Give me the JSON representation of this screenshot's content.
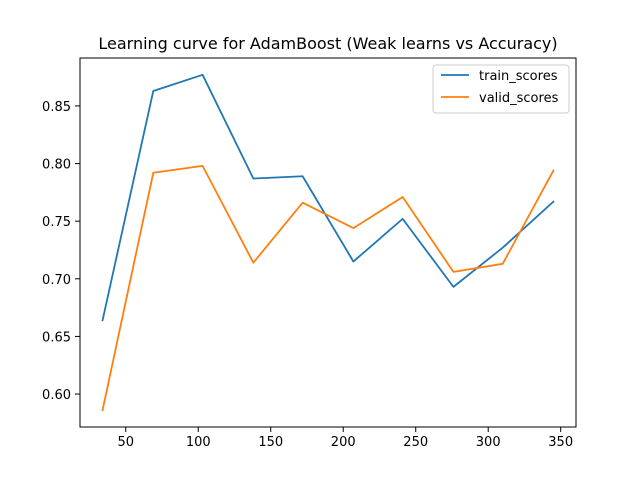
{
  "chart_data": {
    "type": "line",
    "title": "Learning curve for AdamBoost (Weak learns vs Accuracy)",
    "xlabel": "",
    "ylabel": "",
    "x": [
      34,
      69,
      103,
      138,
      172,
      207,
      241,
      276,
      310,
      345
    ],
    "series": [
      {
        "name": "train_scores",
        "color": "#1f77b4",
        "values": [
          0.664,
          0.863,
          0.877,
          0.787,
          0.789,
          0.715,
          0.752,
          0.693,
          0.727,
          0.767
        ]
      },
      {
        "name": "valid_scores",
        "color": "#ff7f0e",
        "values": [
          0.586,
          0.792,
          0.798,
          0.714,
          0.766,
          0.744,
          0.771,
          0.706,
          0.713,
          0.794
        ]
      }
    ],
    "xlim": [
      18.45,
      360.55
    ],
    "ylim": [
      0.5714,
      0.8916
    ],
    "xticks": [
      50,
      100,
      150,
      200,
      250,
      300,
      350
    ],
    "xtick_labels": [
      "50",
      "100",
      "150",
      "200",
      "250",
      "300",
      "350"
    ],
    "yticks": [
      0.6,
      0.65,
      0.7,
      0.75,
      0.8,
      0.85
    ],
    "ytick_labels": [
      "0.60",
      "0.65",
      "0.70",
      "0.75",
      "0.80",
      "0.85"
    ],
    "grid": false,
    "legend_position": "top-right"
  }
}
